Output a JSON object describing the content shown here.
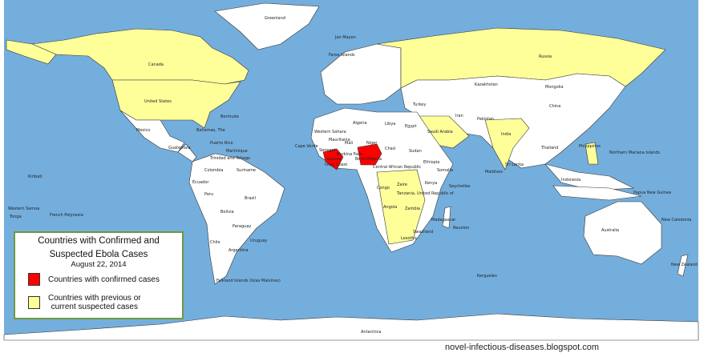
{
  "legend": {
    "title_line1": "Countries with Confirmed and",
    "title_line2": "Suspected Ebola Cases",
    "date": "August 22, 2014",
    "items": [
      {
        "label": "Countries with confirmed cases",
        "color": "#ff0000"
      },
      {
        "label_line1": "Countries with previous or",
        "label_line2": "current suspected cases",
        "color": "#ffff99"
      }
    ]
  },
  "colors": {
    "ocean": "#74aedd",
    "land": "#ffffff",
    "confirmed": "#ff0000",
    "suspected": "#ffff99"
  },
  "credit": "novel-infectious-diseases.blogspot.com",
  "labels": [
    "Greenland",
    "Jan Mayen",
    "Faroe Islands",
    "Canada",
    "United States",
    "Bermuda",
    "Mexico",
    "Bahamas, The",
    "Puerto Rico",
    "Guatemala",
    "Martinique",
    "Trinidad and Tobago",
    "Colombia",
    "Suriname",
    "Ecuador",
    "Peru",
    "Brazil",
    "Bolivia",
    "Paraguay",
    "Chile",
    "Argentina",
    "Uruguay",
    "Falkland Islands (Islas Malvinas)",
    "Russia",
    "Kazakhstan",
    "Mongolia",
    "China",
    "Iran",
    "Turkey",
    "Saudi Arabia",
    "Pakistan",
    "India",
    "Sri Lanka",
    "Maldives",
    "Thailand",
    "Philippines",
    "Indonesia",
    "Papua New Guinea",
    "Australia",
    "New Zealand",
    "New Caledonia",
    "Northern Mariana Islands",
    "Algeria",
    "Libya",
    "Egypt",
    "Western Sahara",
    "Mauritania",
    "Mali",
    "Niger",
    "Chad",
    "Sudan",
    "Senegal",
    "Guinea",
    "Burkina Faso",
    "Ivory Coast",
    "Benin",
    "Nigeria",
    "Central African Republic",
    "Ethiopia",
    "Somalia",
    "Kenya",
    "Zaire",
    "Tanzania, United Republic of",
    "Congo",
    "Angola",
    "Zambia",
    "Madagascar",
    "Seychelles",
    "Reunion",
    "Swaziland",
    "Lesotho",
    "Cape Verde",
    "Kiribati",
    "Western Samoa",
    "French Polynesia",
    "Tonga",
    "Kerguelen",
    "Antarctica"
  ]
}
